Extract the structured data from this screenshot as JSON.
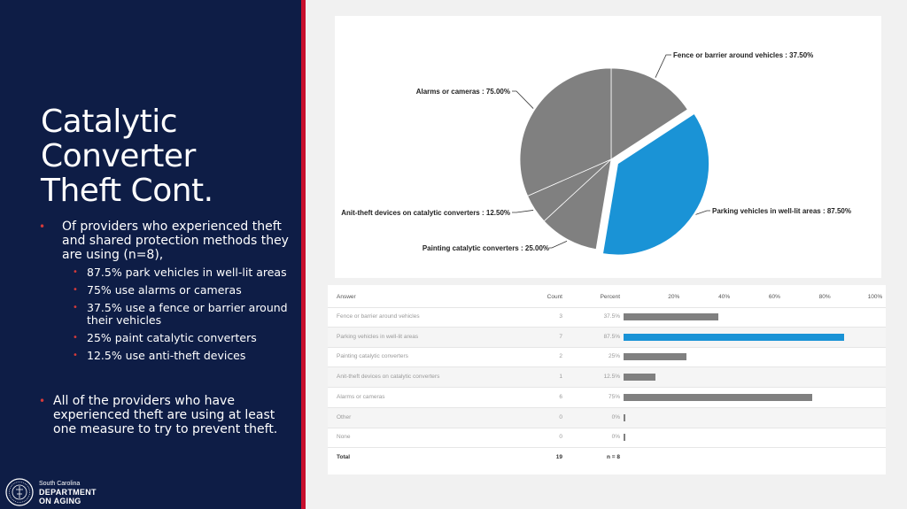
{
  "slide": {
    "title_lines": [
      "Catalytic",
      "Converter",
      "Theft Cont."
    ],
    "bullet1": "Of providers who experienced theft and shared protection methods they are using (n=8),",
    "sub_bullets": [
      "87.5% park vehicles in well-lit areas",
      "75% use alarms or cameras",
      "37.5% use a fence or barrier around their vehicles",
      "25% paint catalytic converters",
      "12.5% use anti-theft devices"
    ],
    "bullet2": "All of the providers who have experienced theft are using at least one measure to try to prevent theft.",
    "logo": {
      "line1": "South Carolina",
      "line2": "DEPARTMENT",
      "line3": "ON AGING"
    }
  },
  "colors": {
    "navy": "#0e1d46",
    "red": "#c8102e",
    "highlight": "#1a93d6",
    "gray": "#808080"
  },
  "chart_data": [
    {
      "type": "pie",
      "slices": [
        {
          "label": "Fence or barrier around vehicles : 37.50%",
          "value": 37.5,
          "color": "#808080"
        },
        {
          "label": "Parking vehicles in well-lit areas : 87.50%",
          "value": 87.5,
          "color": "#1a93d6",
          "exploded": true
        },
        {
          "label": "Painting catalytic converters : 25.00%",
          "value": 25.0,
          "color": "#808080"
        },
        {
          "label": "Anit-theft devices on catalytic converters : 12.50%",
          "value": 12.5,
          "color": "#808080"
        },
        {
          "label": "Alarms or cameras : 75.00%",
          "value": 75.0,
          "color": "#808080"
        }
      ]
    },
    {
      "type": "table",
      "headers": {
        "answer": "Answer",
        "count": "Count",
        "percent": "Percent"
      },
      "axis_ticks": [
        "20%",
        "40%",
        "60%",
        "80%",
        "100%"
      ],
      "axis_tick_values": [
        20,
        40,
        60,
        80,
        100
      ],
      "rows": [
        {
          "answer": "Fence or barrier around vehicles",
          "count": "3",
          "percent": "37.5%",
          "value": 37.5,
          "highlight": false
        },
        {
          "answer": "Parking vehicles in well-lit areas",
          "count": "7",
          "percent": "87.5%",
          "value": 87.5,
          "highlight": true
        },
        {
          "answer": "Painting catalytic converters",
          "count": "2",
          "percent": "25%",
          "value": 25,
          "highlight": false
        },
        {
          "answer": "Anit-theft devices on catalytic converters",
          "count": "1",
          "percent": "12.5%",
          "value": 12.5,
          "highlight": false
        },
        {
          "answer": "Alarms or cameras",
          "count": "6",
          "percent": "75%",
          "value": 75,
          "highlight": false
        },
        {
          "answer": "Other",
          "count": "0",
          "percent": "0%",
          "value": 0,
          "highlight": false
        },
        {
          "answer": "None",
          "count": "0",
          "percent": "0%",
          "value": 0,
          "highlight": false
        }
      ],
      "total": {
        "answer": "Total",
        "count": "19",
        "percent": "n = 8"
      }
    }
  ]
}
